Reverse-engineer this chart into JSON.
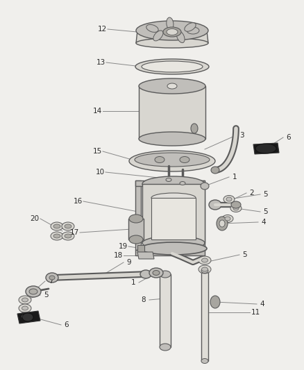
{
  "bg_color": "#f0efec",
  "line_color": "#5a5a5a",
  "fill_light": "#d8d6d0",
  "fill_mid": "#c0beba",
  "fill_dark": "#a8a6a0",
  "black_part": "#1a1a1a",
  "label_color": "#2a2a2a",
  "callout_color": "#888888",
  "lw_part": 1.0,
  "lw_callout": 0.7,
  "font_size": 7.5
}
